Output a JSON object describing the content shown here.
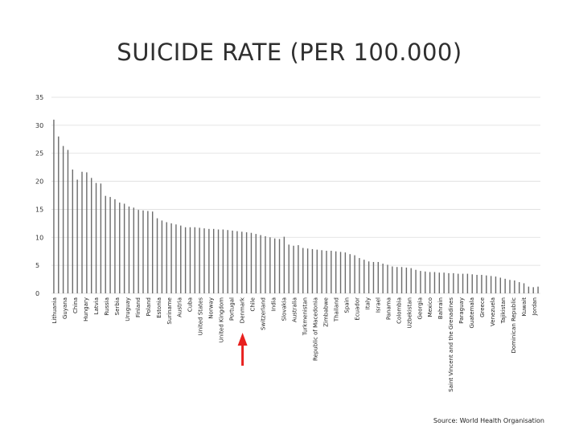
{
  "chart_data": {
    "type": "bar",
    "title": "SUICIDE RATE (PER 100.000)",
    "xlabel": "",
    "ylabel": "",
    "ylim": [
      0,
      35
    ],
    "yticks": [
      0,
      5,
      10,
      15,
      20,
      25,
      30,
      35
    ],
    "grid": true,
    "bar_color": "#6b6b6b",
    "grid_color": "#dddddd",
    "highlight_color": "#e8201e",
    "highlighted_category": "Denmark",
    "categories_labeled": [
      "Lithuania",
      "Guyana",
      "China",
      "Hungary",
      "Latvia",
      "Russia",
      "Serbia",
      "Uruguay",
      "Finland",
      "Poland",
      "Estonia",
      "Suriname",
      "Austria",
      "Cuba",
      "United States",
      "Norway",
      "United Kingdom",
      "Portugal",
      "Denmark",
      "Chile",
      "Switzerland",
      "India",
      "Slovakia",
      "Australia",
      "Turkmenistan",
      "Republic of Macedonia",
      "Zimbabwe",
      "Thailand",
      "Spain",
      "Ecuador",
      "Italy",
      "Israel",
      "Panama",
      "Colombia",
      "Uzbekistan",
      "Georgia",
      "Mexico",
      "Bahrain",
      "Saint Vincent and the Grenadines",
      "Paraguay",
      "Guatemala",
      "Greece",
      "Venezuela",
      "Tajikistan",
      "Dominican Republic",
      "Kuwait",
      "Jordan"
    ],
    "values": [
      31.0,
      28.0,
      26.3,
      25.6,
      22.1,
      20.3,
      21.7,
      21.6,
      20.6,
      19.7,
      19.6,
      17.4,
      17.2,
      16.8,
      16.2,
      16.0,
      15.5,
      15.3,
      14.9,
      14.8,
      14.7,
      14.6,
      13.4,
      13.0,
      12.7,
      12.5,
      12.3,
      12.1,
      11.8,
      11.8,
      11.8,
      11.7,
      11.6,
      11.5,
      11.5,
      11.4,
      11.4,
      11.3,
      11.2,
      11.1,
      11.0,
      10.9,
      10.8,
      10.6,
      10.4,
      10.2,
      10.0,
      9.8,
      9.7,
      10.1,
      8.7,
      8.5,
      8.6,
      8.1,
      8.0,
      7.9,
      7.8,
      7.7,
      7.6,
      7.6,
      7.5,
      7.4,
      7.3,
      7.0,
      6.8,
      6.3,
      6.0,
      5.7,
      5.6,
      5.6,
      5.3,
      5.1,
      4.8,
      4.7,
      4.7,
      4.6,
      4.5,
      4.2,
      4.0,
      3.9,
      3.8,
      3.8,
      3.7,
      3.7,
      3.6,
      3.6,
      3.5,
      3.5,
      3.5,
      3.4,
      3.3,
      3.3,
      3.2,
      3.1,
      3.0,
      2.8,
      2.6,
      2.4,
      2.3,
      2.0,
      1.8,
      1.2,
      1.1,
      1.2
    ]
  },
  "source_text": "Source: World Health Organisation"
}
